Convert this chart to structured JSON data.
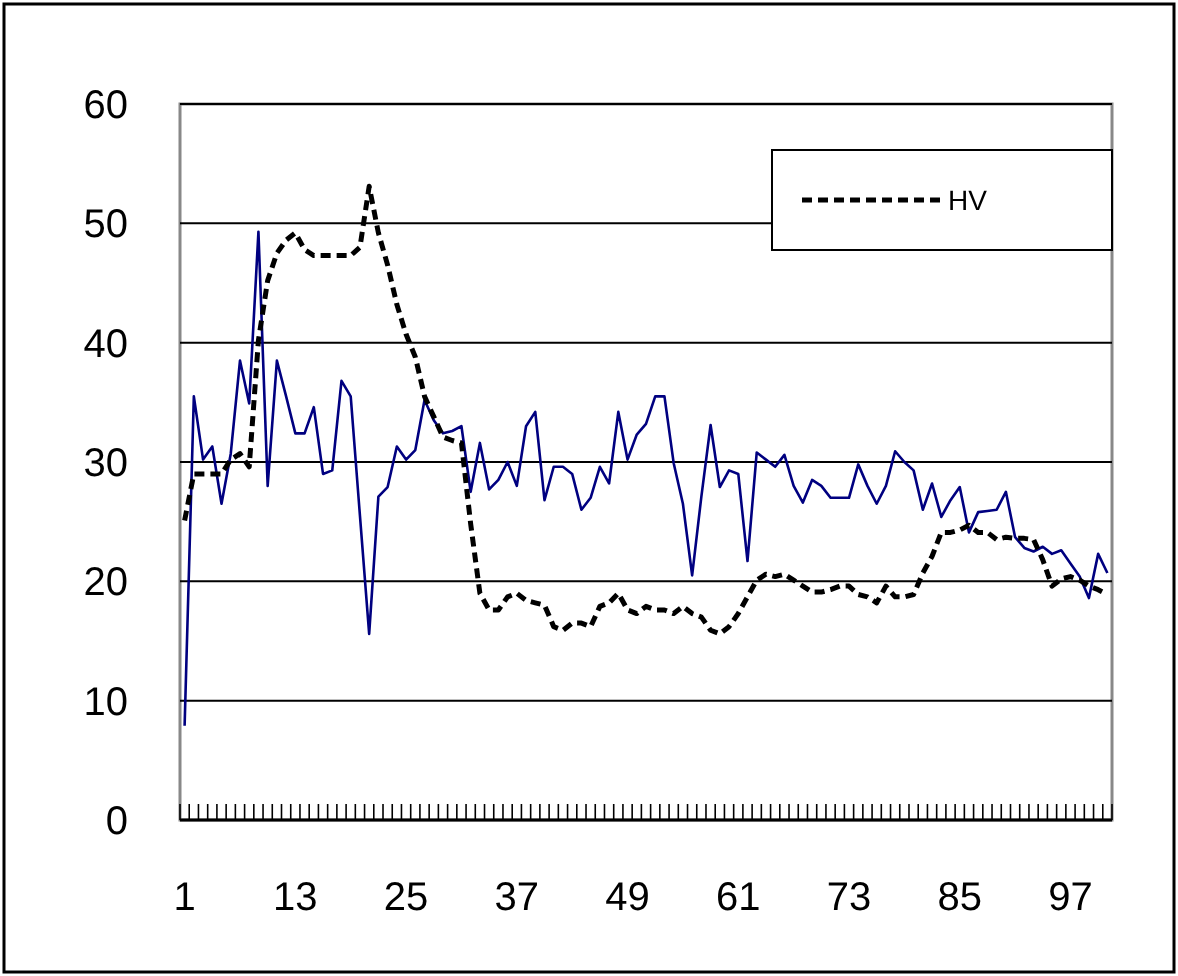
{
  "chart_data": {
    "type": "line",
    "categories": [
      "1",
      null,
      null,
      null,
      null,
      null,
      null,
      null,
      null,
      null,
      null,
      null,
      "13",
      null,
      null,
      null,
      null,
      null,
      null,
      null,
      null,
      null,
      null,
      null,
      "25",
      null,
      null,
      null,
      null,
      null,
      null,
      null,
      null,
      null,
      null,
      null,
      "37",
      null,
      null,
      null,
      null,
      null,
      null,
      null,
      null,
      null,
      null,
      null,
      "49",
      null,
      null,
      null,
      null,
      null,
      null,
      null,
      null,
      null,
      null,
      null,
      "61",
      null,
      null,
      null,
      null,
      null,
      null,
      null,
      null,
      null,
      null,
      null,
      "73",
      null,
      null,
      null,
      null,
      null,
      null,
      null,
      null,
      null,
      null,
      null,
      "85",
      null,
      null,
      null,
      null,
      null,
      null,
      null,
      null,
      null,
      null,
      null,
      "97",
      null,
      null,
      null,
      null
    ],
    "series": [
      {
        "color": "#000080",
        "line_style": "solid",
        "values": [
          7.9,
          35.5,
          30.2,
          31.3,
          26.5,
          30.7,
          38.5,
          34.9,
          49.3,
          28,
          38.5,
          35.5,
          32.4,
          32.4,
          34.6,
          29,
          29.3,
          36.8,
          35.5,
          25.5,
          15.6,
          27.1,
          27.9,
          31.3,
          30.2,
          31,
          35.2,
          33.5,
          32.4,
          32.6,
          33,
          27.5,
          31.6,
          27.7,
          28.5,
          30,
          28,
          33,
          34.2,
          26.8,
          29.6,
          29.6,
          29,
          26,
          27,
          29.6,
          28.2,
          34.2,
          30.2,
          32.3,
          33.2,
          35.5,
          35.5,
          29.9,
          26.5,
          20.5,
          27.1,
          33.1,
          27.9,
          29.3,
          29,
          21.7,
          30.8,
          30.2,
          29.6,
          30.6,
          28,
          26.6,
          28.5,
          28,
          27,
          27,
          27,
          29.8,
          28,
          26.5,
          28,
          30.9,
          30,
          29.3,
          26,
          28.2,
          25.4,
          26.8,
          27.9,
          24.1,
          25.8,
          25.9,
          26,
          27.5,
          23.7,
          22.8,
          22.5,
          22.9,
          22.3,
          22.6,
          21.5,
          20.4,
          18.6,
          22.3,
          20.7
        ]
      },
      {
        "name": "HV",
        "color": "#000000",
        "line_style": "dashed",
        "values": [
          25.1,
          29,
          29,
          29,
          29,
          30.2,
          30.7,
          29.6,
          40.2,
          45.2,
          47.5,
          48.6,
          49.2,
          47.8,
          47.3,
          47.3,
          47.3,
          47.3,
          47.3,
          48,
          53.1,
          49.2,
          46.5,
          43.2,
          40.7,
          38.8,
          35.5,
          33.8,
          32.1,
          31.8,
          31.6,
          24.8,
          19,
          17.6,
          17.6,
          18.7,
          19,
          18.4,
          18.2,
          18,
          16.2,
          15.9,
          16.5,
          16.5,
          16.2,
          17.9,
          18.2,
          19,
          17.6,
          17.3,
          17.9,
          17.6,
          17.6,
          17.3,
          17.9,
          17.3,
          17,
          15.9,
          15.6,
          16.2,
          17.3,
          18.7,
          20.1,
          20.6,
          20.4,
          20.6,
          20.1,
          19.6,
          19.1,
          19.1,
          19.3,
          19.6,
          19.6,
          18.9,
          18.7,
          18.2,
          19.6,
          18.7,
          18.7,
          18.9,
          20.7,
          22.1,
          24.1,
          24.1,
          24.3,
          24.7,
          24.1,
          24.1,
          23.5,
          23.7,
          23.6,
          23.6,
          23.5,
          21.8,
          19.6,
          20.2,
          20.4,
          20.1,
          19.6,
          19.3,
          18.9
        ]
      }
    ],
    "ylim": [
      0,
      60
    ],
    "yticks": [
      0,
      10,
      20,
      30,
      40,
      50,
      60
    ],
    "grid": "y",
    "legend": "top right"
  }
}
